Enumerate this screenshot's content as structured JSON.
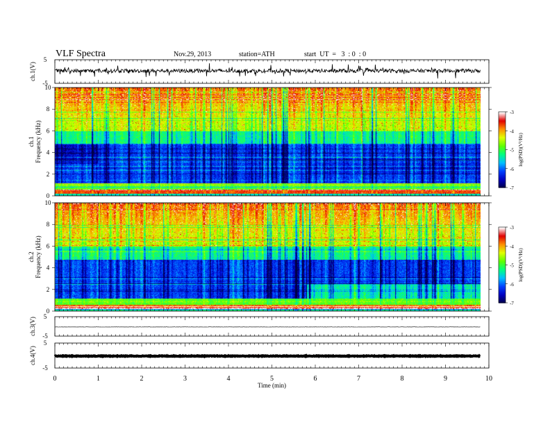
{
  "header": {
    "title": "VLF  Spectra",
    "date": "Nov.29, 2013",
    "station": "station=ATH",
    "start": "start  UT  =   3  : 0  : 0"
  },
  "colors": {
    "colormap": [
      "#000044",
      "#0000c0",
      "#0040ff",
      "#00c0ff",
      "#00ff80",
      "#60ff00",
      "#e0ff00",
      "#ff9000",
      "#e00000",
      "#ffffff"
    ]
  },
  "chart_data": [
    {
      "type": "line",
      "ylabel": "ch.1(V)",
      "ylim": [
        -5,
        5
      ],
      "yticks": [
        "5",
        "-5"
      ],
      "description_level": "noisy waveform around 0 V"
    },
    {
      "type": "heatmap",
      "ylabel_channel": "ch.1",
      "ylabel": "Frequency  (kHz)",
      "ylim": [
        0,
        10
      ],
      "yticks": [
        "0",
        "2",
        "4",
        "6",
        "8",
        "10"
      ],
      "colorbar": {
        "label": "log(PSD)(V²/Hz)",
        "ticks": [
          "-3",
          "-4",
          "-5",
          "-6",
          "-7"
        ],
        "range": [
          -7,
          -3
        ]
      }
    },
    {
      "type": "heatmap",
      "ylabel_channel": "ch.2",
      "ylabel": "Frequency  (kHz)",
      "ylim": [
        0,
        10
      ],
      "yticks": [
        "0",
        "2",
        "4",
        "6",
        "8",
        "10"
      ],
      "colorbar": {
        "label": "log(PSD)(V²/Hz)",
        "ticks": [
          "-3",
          "-4",
          "-5",
          "-6",
          "-7"
        ],
        "range": [
          -7,
          -3
        ]
      }
    },
    {
      "type": "line",
      "ylabel": "ch.3(V)",
      "ylim": [
        -5,
        5
      ],
      "yticks": [
        "5",
        "-5"
      ]
    },
    {
      "type": "line",
      "ylabel": "ch.4(V)",
      "ylim": [
        -5,
        5
      ],
      "yticks": [
        "5",
        "-5"
      ]
    }
  ],
  "xaxis": {
    "label": "Time  (min)",
    "range": [
      0,
      10
    ],
    "ticks": [
      "0",
      "1",
      "2",
      "3",
      "4",
      "5",
      "6",
      "7",
      "8",
      "9",
      "10"
    ],
    "data_end": 9.8
  }
}
